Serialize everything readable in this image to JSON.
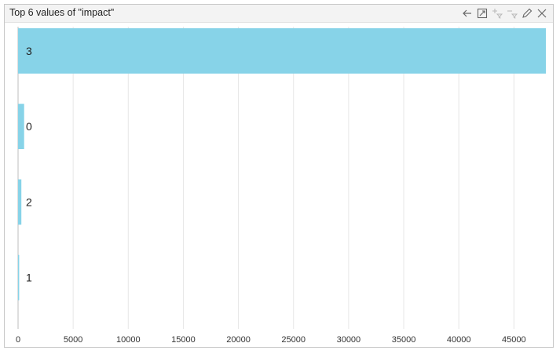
{
  "header": {
    "title": "Top 6 values of \"impact\"",
    "tools": [
      {
        "name": "back-arrow-icon",
        "enabled": true
      },
      {
        "name": "expand-icon",
        "enabled": true
      },
      {
        "name": "filter-include-icon",
        "enabled": false
      },
      {
        "name": "filter-exclude-icon",
        "enabled": false
      },
      {
        "name": "edit-pencil-icon",
        "enabled": true
      },
      {
        "name": "close-icon",
        "enabled": true
      }
    ]
  },
  "colors": {
    "bar": "#87d3e8",
    "grid": "#e6e6e6",
    "axis": "#bdbdbd"
  },
  "chart_data": {
    "type": "bar",
    "orientation": "horizontal",
    "categories": [
      "3",
      "0",
      "2",
      "1"
    ],
    "values": [
      47900,
      550,
      300,
      100
    ],
    "xlim": [
      0,
      47900
    ],
    "xticks": [
      0,
      5000,
      10000,
      15000,
      20000,
      25000,
      30000,
      35000,
      40000,
      45000
    ],
    "grid": true,
    "title": "Top 6 values of \"impact\"",
    "xlabel": "",
    "ylabel": ""
  }
}
